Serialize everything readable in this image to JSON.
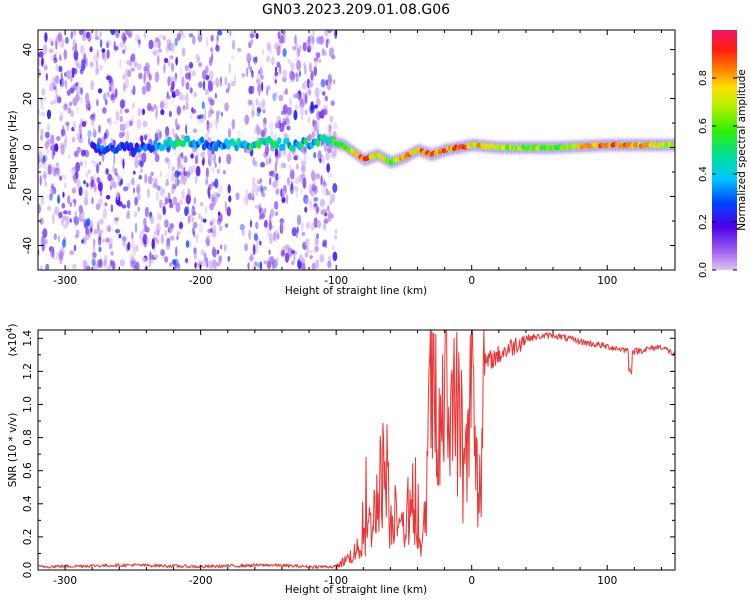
{
  "title": "GN03.2023.209.01.08.G06",
  "colorbar": {
    "label": "Normalized spectral amplitude",
    "ticks": [
      0.0,
      0.2,
      0.4,
      0.6,
      0.8
    ],
    "tick_labels": [
      "0.0",
      "0.2",
      "0.4",
      "0.6",
      "0.8"
    ]
  },
  "chart_data": [
    {
      "type": "heatmap",
      "title": "GN03.2023.209.01.08.G06",
      "xlabel": "Height of straight line (km)",
      "ylabel": "Frequency (Hz)",
      "xlim": [
        -320,
        150
      ],
      "ylim": [
        -50,
        48
      ],
      "x_ticks": [
        -300,
        -200,
        -100,
        0,
        100
      ],
      "x_tick_labels": [
        "-300",
        "-200",
        "-100",
        "0",
        "100"
      ],
      "y_ticks": [
        -40,
        -20,
        0,
        20,
        40
      ],
      "y_tick_labels": [
        "-40",
        "-20",
        "0",
        "20",
        "40"
      ],
      "colorbar_range": [
        0.0,
        1.0
      ],
      "ridge": {
        "x": [
          -270,
          -240,
          -215,
          -190,
          -170,
          -150,
          -130,
          -110,
          -95,
          -80,
          -70,
          -60,
          -50,
          -40,
          -30,
          -20,
          -10,
          0,
          20,
          60,
          100,
          150
        ],
        "y": [
          0,
          0,
          3,
          1,
          1,
          2,
          1,
          3,
          1,
          -5,
          -3,
          -6,
          -4,
          -1,
          -3,
          -1,
          0,
          1,
          0,
          0,
          1,
          1
        ],
        "amplitude": [
          0.3,
          0.3,
          0.5,
          0.3,
          0.5,
          0.5,
          0.5,
          0.5,
          0.6,
          0.9,
          0.8,
          0.6,
          0.8,
          0.8,
          0.9,
          0.9,
          0.9,
          0.8,
          0.7,
          0.6,
          0.9,
          0.7
        ]
      },
      "noise_region": {
        "x": [
          -320,
          -100
        ],
        "y": [
          -50,
          48
        ]
      }
    },
    {
      "type": "line",
      "xlabel": "Height of straight line (km)",
      "ylabel": "SNR (10 * v/v)",
      "y_multiplier_label": "(x10",
      "y_multiplier_exp": "4",
      "y_multiplier_close": ")",
      "xlim": [
        -320,
        150
      ],
      "ylim": [
        0,
        1.45
      ],
      "x_ticks": [
        -300,
        -200,
        -100,
        0,
        100
      ],
      "x_tick_labels": [
        "-300",
        "-200",
        "-100",
        "0",
        "100"
      ],
      "y_ticks": [
        0.0,
        0.2,
        0.4,
        0.6,
        0.8,
        1.0,
        1.2,
        1.4
      ],
      "y_tick_labels": [
        "0.0",
        "0.2",
        "0.4",
        "0.6",
        "0.8",
        "1.0",
        "1.2",
        "1.4"
      ],
      "series": [
        {
          "color": "#ee3333",
          "x": [
            -320,
            -250,
            -200,
            -150,
            -120,
            -100,
            -90,
            -80,
            -70,
            -65,
            -60,
            -55,
            -50,
            -45,
            -40,
            -35,
            -30,
            -25,
            -20,
            -15,
            -10,
            -5,
            0,
            5,
            10,
            20,
            30,
            40,
            60,
            80,
            100,
            120,
            140,
            150
          ],
          "y": [
            0.02,
            0.03,
            0.02,
            0.03,
            0.02,
            0.02,
            0.08,
            0.15,
            0.4,
            0.65,
            0.25,
            0.45,
            0.2,
            0.4,
            0.1,
            0.2,
            1.2,
            0.6,
            1.1,
            0.9,
            0.95,
            0.5,
            1.1,
            0.4,
            1.25,
            1.3,
            1.35,
            1.4,
            1.42,
            1.38,
            1.35,
            1.32,
            1.35,
            1.3
          ]
        }
      ]
    }
  ]
}
